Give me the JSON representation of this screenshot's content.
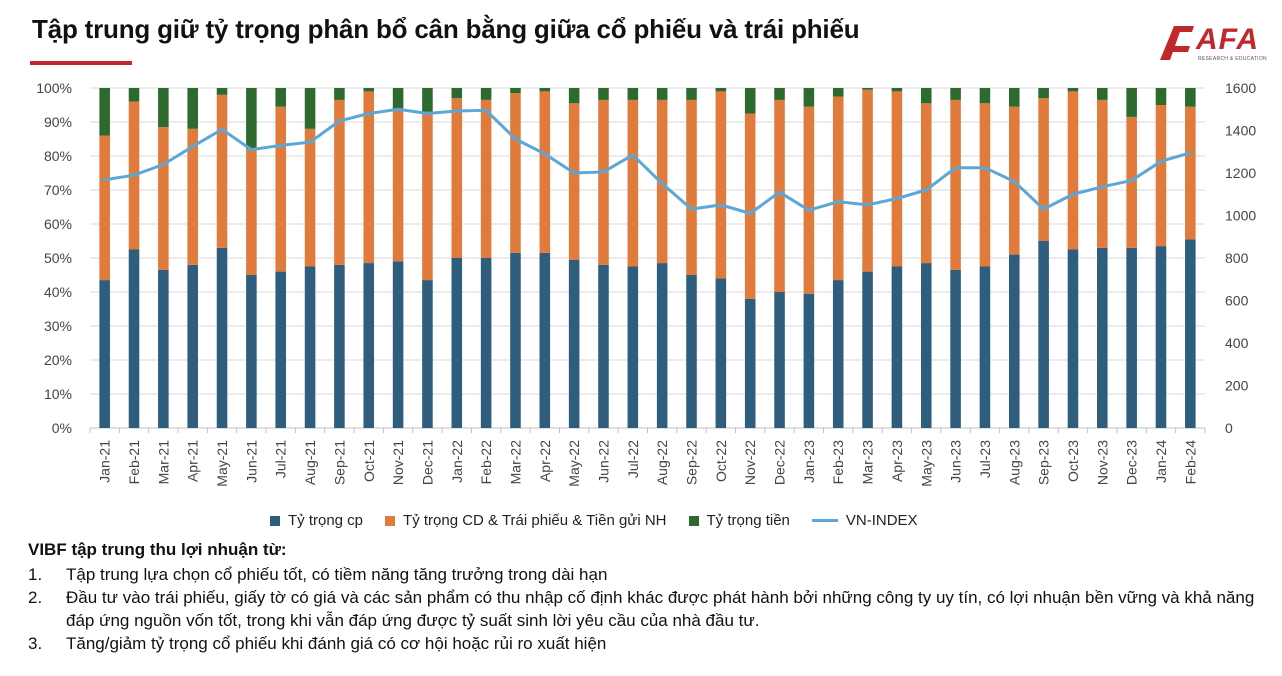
{
  "title": "Tập trung giữ tỷ trọng phân bổ cân bằng giữa cổ phiếu và trái phiếu",
  "logo": {
    "text": "AFA",
    "subtext": "RESEARCH & EDUCATION"
  },
  "colors": {
    "stock": "#2f5d7e",
    "bond": "#e07b3c",
    "cash": "#2d6a2d",
    "index": "#5aa7d8",
    "accent": "#c0282d"
  },
  "chart_data": {
    "type": "bar",
    "stacked": true,
    "categories": [
      "Jan-21",
      "Feb-21",
      "Mar-21",
      "Apr-21",
      "May-21",
      "Jun-21",
      "Jul-21",
      "Aug-21",
      "Sep-21",
      "Oct-21",
      "Nov-21",
      "Dec-21",
      "Jan-22",
      "Feb-22",
      "Mar-22",
      "Apr-22",
      "May-22",
      "Jun-22",
      "Jul-22",
      "Aug-22",
      "Sep-22",
      "Oct-22",
      "Nov-22",
      "Dec-22",
      "Jan-23",
      "Feb-23",
      "Mar-23",
      "Apr-23",
      "May-23",
      "Jun-23",
      "Jul-23",
      "Aug-23",
      "Sep-23",
      "Oct-23",
      "Nov-23",
      "Dec-23",
      "Jan-24",
      "Feb-24"
    ],
    "series": [
      {
        "name": "Tỷ trọng cp",
        "axis": "left",
        "values": [
          43.5,
          52.5,
          46.5,
          48,
          53,
          45,
          46,
          47.5,
          48,
          48.5,
          49,
          43.5,
          50,
          50,
          51.5,
          51.5,
          49.5,
          48,
          47.5,
          48.5,
          45,
          44,
          38,
          40,
          39.5,
          43.5,
          46,
          47.5,
          48.5,
          46.5,
          47.5,
          51,
          55,
          52.5,
          53,
          53,
          53.5,
          55.5
        ]
      },
      {
        "name": "Tỷ trọng CD & Trái phiếu & Tiền gửi NH",
        "axis": "left",
        "values": [
          42.5,
          43.5,
          42,
          40,
          45,
          37,
          48.5,
          40.5,
          48.5,
          50.5,
          44.5,
          49.5,
          47,
          46.5,
          47,
          47.5,
          46,
          48.5,
          49,
          48,
          51.5,
          55,
          54.5,
          56.5,
          55,
          54,
          53.5,
          51.5,
          47,
          50,
          48,
          43.5,
          42,
          46.5,
          43.5,
          38.5,
          41.5,
          39
        ]
      },
      {
        "name": "Tỷ trọng tiền",
        "axis": "left",
        "values": [
          14,
          4,
          11.5,
          12,
          2,
          18,
          5.5,
          12,
          3.5,
          1,
          6.5,
          7,
          3,
          3.5,
          1.5,
          1,
          4.5,
          3.5,
          3.5,
          3.5,
          3.5,
          1,
          7.5,
          3.5,
          5.5,
          2.5,
          0.5,
          1,
          4.5,
          3.5,
          4.5,
          5.5,
          3,
          1,
          3.5,
          8.5,
          5,
          5.5
        ]
      },
      {
        "name": "VN-INDEX",
        "type": "line",
        "axis": "right",
        "values": [
          1168,
          1190,
          1240,
          1325,
          1405,
          1310,
          1330,
          1345,
          1445,
          1480,
          1500,
          1480,
          1492,
          1495,
          1360,
          1290,
          1200,
          1205,
          1285,
          1150,
          1030,
          1050,
          1010,
          1110,
          1025,
          1065,
          1050,
          1080,
          1120,
          1225,
          1225,
          1160,
          1030,
          1100,
          1135,
          1165,
          1255,
          1295
        ]
      }
    ],
    "y_left": {
      "ylim": [
        0,
        100
      ],
      "ticks": [
        "0%",
        "10%",
        "20%",
        "30%",
        "40%",
        "50%",
        "60%",
        "70%",
        "80%",
        "90%",
        "100%"
      ]
    },
    "y_right": {
      "ylim": [
        0,
        1600
      ],
      "ticks": [
        "0",
        "200",
        "400",
        "600",
        "800",
        "1000",
        "1200",
        "1400",
        "1600"
      ]
    },
    "grid": true,
    "legend": "bottom"
  },
  "notes": {
    "heading": "VIBF tập trung thu lợi nhuận từ:",
    "items": [
      {
        "num": "1.",
        "text": "Tập trung lựa chọn cổ phiếu tốt, có tiềm năng tăng trưởng trong dài hạn"
      },
      {
        "num": "2.",
        "text": "Đầu tư vào trái phiếu, giấy tờ có giá và các sản phẩm có thu nhập cố định khác được phát hành bởi những công ty uy tín, có lợi nhuận bền vững và khả năng đáp ứng nguồn vốn tốt, trong khi vẫn đáp ứng được tỷ suất sinh lời yêu cầu của nhà đầu tư."
      },
      {
        "num": "3.",
        "text": "Tăng/giảm tỷ trọng cổ phiếu khi đánh giá có cơ hội hoặc rủi ro xuất hiện"
      }
    ]
  }
}
